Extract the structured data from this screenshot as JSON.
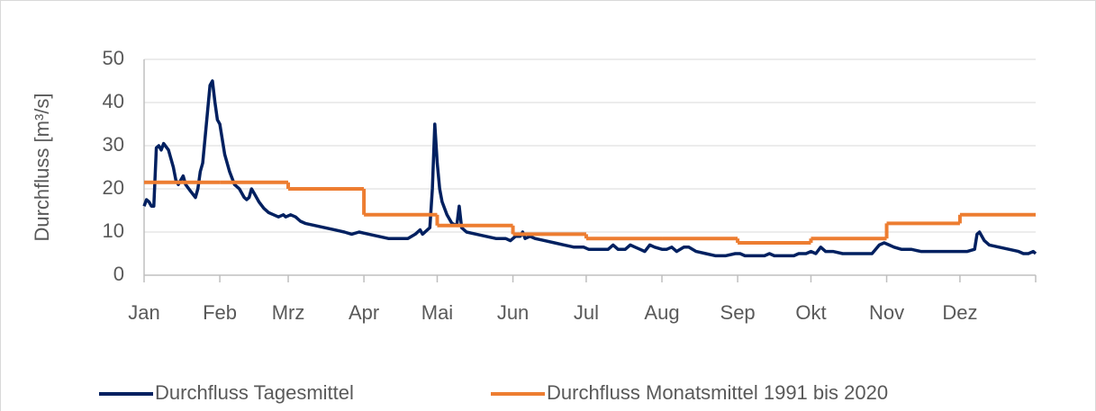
{
  "chart_data": {
    "type": "line",
    "y_label": "Durchfluss [m³/s]",
    "xlim": [
      0,
      365
    ],
    "xticks": [
      {
        "value": 0,
        "label": "Jan"
      },
      {
        "value": 31,
        "label": "Feb"
      },
      {
        "value": 59,
        "label": "Mrz"
      },
      {
        "value": 90,
        "label": "Apr"
      },
      {
        "value": 120,
        "label": "Mai"
      },
      {
        "value": 151,
        "label": "Jun"
      },
      {
        "value": 181,
        "label": "Jul"
      },
      {
        "value": 212,
        "label": "Aug"
      },
      {
        "value": 243,
        "label": "Sep"
      },
      {
        "value": 273,
        "label": "Okt"
      },
      {
        "value": 304,
        "label": "Nov"
      },
      {
        "value": 334,
        "label": "Dez"
      }
    ],
    "ylim": [
      0,
      50
    ],
    "yticks": [
      0,
      10,
      20,
      30,
      40,
      50
    ],
    "grid": true,
    "legend": "bottom",
    "series": [
      {
        "name": "Durchfluss Tagesmittel",
        "color": "#002060",
        "step": false,
        "x": [
          0,
          1,
          2,
          3,
          4,
          5,
          6,
          7,
          8,
          10,
          12,
          13,
          14,
          16,
          17,
          19,
          21,
          22,
          23,
          24,
          26,
          27,
          28,
          29,
          30,
          31,
          33,
          35,
          37,
          39,
          41,
          42,
          43,
          44,
          45,
          47,
          49,
          51,
          53,
          55,
          57,
          58,
          60,
          62,
          64,
          66,
          70,
          74,
          78,
          82,
          85,
          88,
          92,
          96,
          100,
          104,
          108,
          111,
          113,
          114,
          116,
          117,
          118,
          119,
          120,
          121,
          122,
          124,
          126,
          128,
          129,
          130,
          132,
          136,
          140,
          144,
          148,
          150,
          152,
          154,
          155,
          156,
          158,
          160,
          164,
          168,
          172,
          176,
          180,
          182,
          186,
          190,
          192,
          194,
          197,
          199,
          201,
          203,
          205,
          207,
          209,
          212,
          214,
          216,
          218,
          221,
          223,
          226,
          230,
          234,
          238,
          242,
          244,
          246,
          250,
          254,
          256,
          258,
          262,
          266,
          268,
          271,
          273,
          275,
          277,
          279,
          282,
          286,
          290,
          294,
          298,
          301,
          303,
          305,
          307,
          310,
          314,
          318,
          322,
          326,
          330,
          334,
          337,
          340,
          341,
          342,
          344,
          346,
          350,
          354,
          358,
          360,
          362,
          364,
          365
        ],
        "values": [
          16,
          17.5,
          17,
          16,
          16,
          29.5,
          30,
          29,
          30.5,
          29,
          25,
          22,
          21,
          23,
          21,
          19.5,
          18,
          20,
          24,
          26,
          38,
          44,
          45,
          40,
          36,
          35,
          28,
          24,
          21,
          20,
          18,
          17.5,
          18,
          20,
          19,
          17,
          15.5,
          14.5,
          14,
          13.5,
          14,
          13.5,
          14,
          13.5,
          12.5,
          12,
          11.5,
          11,
          10.5,
          10,
          9.5,
          10,
          9.5,
          9,
          8.5,
          8.5,
          8.5,
          9.5,
          10.5,
          9.5,
          10.5,
          11,
          20,
          35,
          26,
          20,
          17,
          14,
          12,
          11.5,
          16,
          11,
          10,
          9.5,
          9,
          8.5,
          8.5,
          8,
          9,
          9,
          10,
          8.5,
          9,
          8.5,
          8,
          7.5,
          7,
          6.5,
          6.5,
          6,
          6,
          6,
          7,
          6,
          6,
          7,
          6.5,
          6,
          5.5,
          7,
          6.5,
          6,
          6,
          6.5,
          5.5,
          6.5,
          6.5,
          5.5,
          5,
          4.5,
          4.5,
          5,
          5,
          4.5,
          4.5,
          4.5,
          5,
          4.5,
          4.5,
          4.5,
          5,
          5,
          5.5,
          5,
          6.5,
          5.5,
          5.5,
          5,
          5,
          5,
          5,
          7,
          7.5,
          7,
          6.5,
          6,
          6,
          5.5,
          5.5,
          5.5,
          5.5,
          5.5,
          5.5,
          6,
          9.5,
          10,
          8,
          7,
          6.5,
          6,
          5.5,
          5,
          5,
          5.5,
          5
        ]
      },
      {
        "name": "Durchfluss Monatsmittel 1991 bis 2020",
        "color": "#ed7d31",
        "step": true,
        "x": [
          0,
          31,
          59,
          90,
          120,
          151,
          181,
          212,
          243,
          273,
          304,
          334
        ],
        "values": [
          21.5,
          21.5,
          20,
          14,
          11.5,
          9.5,
          8.5,
          8.5,
          7.5,
          8.5,
          12,
          14
        ]
      }
    ]
  }
}
